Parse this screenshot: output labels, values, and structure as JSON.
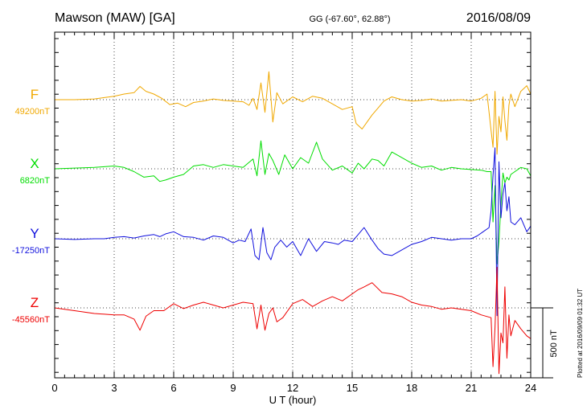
{
  "chart_data": {
    "type": "line",
    "station": "Mawson (MAW)  [GA]",
    "coords": "GG (-67.60°,  62.88°)",
    "date": "2016/08/09",
    "xlabel": "U T (hour)",
    "xlim": [
      0,
      24
    ],
    "xticks": [
      0,
      3,
      6,
      9,
      12,
      15,
      18,
      21,
      24
    ],
    "scale_bar_nT": 500,
    "scale_label": "500 nT",
    "plotted_note": "Plotted at 2016/09/09 01:32 UT",
    "grid": true,
    "series": [
      {
        "name": "F",
        "baseline_label": "49200nT",
        "color": "#f0a800",
        "x": [
          0,
          1,
          2,
          2.5,
          3,
          3.5,
          4,
          4.3,
          4.6,
          5,
          5.4,
          5.8,
          6.2,
          6.6,
          7,
          7.5,
          8,
          8.5,
          9,
          9.5,
          9.8,
          10,
          10.2,
          10.4,
          10.6,
          10.8,
          11,
          11.2,
          11.5,
          12,
          12.5,
          13,
          13.5,
          14,
          14.5,
          15,
          15.2,
          15.5,
          15.8,
          16,
          16.3,
          16.6,
          17,
          17.5,
          18,
          18.5,
          19,
          19.5,
          20,
          20.5,
          21,
          21.5,
          21.8,
          22,
          22.1,
          22.2,
          22.3,
          22.4,
          22.5,
          22.6,
          22.7,
          22.8,
          22.9,
          23,
          23.2,
          23.5,
          23.8,
          24
        ],
        "y": [
          0,
          0,
          5,
          15,
          25,
          40,
          50,
          95,
          60,
          40,
          10,
          -35,
          -25,
          -50,
          -20,
          -10,
          5,
          -5,
          -10,
          -15,
          -40,
          10,
          -70,
          120,
          -90,
          200,
          -160,
          50,
          -30,
          20,
          -15,
          25,
          10,
          -30,
          -70,
          -50,
          -170,
          -210,
          -150,
          -110,
          -60,
          -10,
          20,
          0,
          -10,
          -5,
          5,
          -10,
          -5,
          0,
          -10,
          10,
          40,
          -220,
          -340,
          60,
          -390,
          -120,
          -230,
          20,
          -150,
          -290,
          -40,
          40,
          -50,
          60,
          100,
          40
        ]
      },
      {
        "name": "X",
        "baseline_label": "6820nT",
        "color": "#00dd00",
        "x": [
          0,
          1,
          2,
          2.5,
          3,
          3.5,
          4,
          4.5,
          5,
          5.3,
          5.6,
          6,
          6.5,
          7,
          7.5,
          8,
          8.5,
          9,
          9.5,
          10,
          10.2,
          10.4,
          10.6,
          10.8,
          11,
          11.3,
          11.6,
          12,
          12.4,
          12.8,
          13.2,
          13.5,
          14,
          14.5,
          15,
          15.3,
          15.6,
          16,
          16.3,
          16.6,
          17,
          17.5,
          18,
          18.5,
          19,
          19.5,
          20,
          20.5,
          21,
          21.5,
          21.8,
          22,
          22.1,
          22.2,
          22.3,
          22.4,
          22.5,
          22.6,
          22.7,
          22.8,
          22.9,
          23,
          23.2,
          23.5,
          23.8,
          24
        ],
        "y": [
          0,
          5,
          10,
          15,
          20,
          10,
          -20,
          -60,
          -50,
          -90,
          -80,
          -60,
          -40,
          20,
          30,
          10,
          30,
          20,
          10,
          70,
          -50,
          200,
          -40,
          110,
          60,
          -40,
          100,
          0,
          80,
          40,
          190,
          70,
          -10,
          20,
          -30,
          40,
          0,
          70,
          60,
          20,
          120,
          80,
          40,
          10,
          20,
          -10,
          10,
          0,
          -5,
          -10,
          -20,
          -20,
          -380,
          -120,
          -680,
          -520,
          -250,
          -30,
          -100,
          -60,
          -80,
          -40,
          -20,
          10,
          0,
          -50
        ]
      },
      {
        "name": "Y",
        "baseline_label": "-17250nT",
        "color": "#1010dd",
        "x": [
          0,
          1,
          2,
          2.5,
          3,
          3.5,
          4,
          4.5,
          5,
          5.3,
          5.6,
          6,
          6.5,
          7,
          7.5,
          8,
          8.5,
          9,
          9.3,
          9.6,
          9.9,
          10.1,
          10.3,
          10.5,
          10.7,
          10.9,
          11.1,
          11.4,
          11.7,
          12,
          12.4,
          12.8,
          13.2,
          13.6,
          14,
          14.3,
          14.6,
          15,
          15.3,
          15.6,
          16,
          16.3,
          16.6,
          17,
          17.5,
          18,
          18.5,
          19,
          19.5,
          20,
          20.5,
          21,
          21.3,
          21.6,
          21.9,
          22,
          22.1,
          22.2,
          22.3,
          22.4,
          22.5,
          22.6,
          22.7,
          22.8,
          22.9,
          23,
          23.2,
          23.5,
          23.8,
          24
        ],
        "y": [
          0,
          -5,
          0,
          0,
          10,
          15,
          5,
          20,
          30,
          15,
          35,
          50,
          15,
          10,
          -10,
          20,
          10,
          -30,
          -10,
          -20,
          70,
          -120,
          -150,
          80,
          -100,
          -150,
          -60,
          -10,
          -60,
          -20,
          -120,
          0,
          -90,
          -20,
          -30,
          -40,
          -10,
          -20,
          30,
          80,
          -10,
          -70,
          -110,
          -120,
          -80,
          -40,
          -20,
          10,
          0,
          -10,
          0,
          0,
          20,
          50,
          80,
          200,
          450,
          650,
          -550,
          550,
          150,
          320,
          400,
          200,
          300,
          120,
          100,
          150,
          50,
          90
        ]
      },
      {
        "name": "Z",
        "baseline_label": "-45560nT",
        "color": "#ee0000",
        "x": [
          0,
          1,
          2,
          3,
          3.5,
          4,
          4.3,
          4.6,
          5,
          5.5,
          6,
          6.5,
          7,
          7.5,
          8,
          8.5,
          9,
          9.5,
          10,
          10.2,
          10.4,
          10.6,
          10.8,
          11,
          11.2,
          11.5,
          12,
          12.5,
          13,
          13.5,
          14,
          14.5,
          15,
          15.3,
          15.6,
          16,
          16.5,
          17,
          17.5,
          18,
          18.5,
          19,
          19.5,
          20,
          20.5,
          21,
          21.5,
          22,
          22.1,
          22.2,
          22.3,
          22.4,
          22.5,
          22.6,
          22.7,
          22.8,
          22.9,
          23,
          23.2,
          23.5,
          23.8,
          24
        ],
        "y": [
          0,
          -20,
          -40,
          -50,
          -50,
          -80,
          -160,
          -60,
          -20,
          -20,
          30,
          -5,
          20,
          40,
          20,
          0,
          20,
          40,
          30,
          -150,
          20,
          -160,
          -40,
          0,
          -100,
          -70,
          30,
          60,
          10,
          50,
          80,
          50,
          100,
          130,
          150,
          180,
          110,
          100,
          80,
          40,
          20,
          10,
          -10,
          0,
          -10,
          -20,
          -50,
          -70,
          -420,
          -140,
          290,
          -470,
          -180,
          -250,
          150,
          -360,
          -50,
          -200,
          -90,
          -150,
          -200,
          -220
        ]
      }
    ]
  }
}
